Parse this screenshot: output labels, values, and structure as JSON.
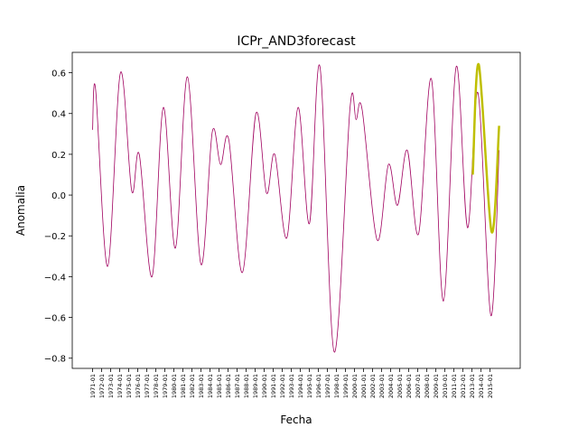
{
  "chart_data": {
    "type": "line",
    "title": "ICPr_AND3forecast",
    "x_label": "Fecha",
    "y_label": "Anomalia",
    "series": [
      {
        "name": "ICPr",
        "color": "#a0005f",
        "x": [
          "1971-01",
          "1971-05",
          "1972-09",
          "1974-02",
          "1975-05",
          "1976-03",
          "1977-08",
          "1978-11",
          "1980-03",
          "1981-07",
          "1983-01",
          "1984-04",
          "1985-03",
          "1986-02",
          "1987-08",
          "1989-02",
          "1990-04",
          "1991-03",
          "1992-07",
          "1993-10",
          "1995-01",
          "1996-03",
          "1997-10",
          "1999-07",
          "2000-03",
          "2000-11",
          "2002-07",
          "2003-10",
          "2004-10",
          "2005-11",
          "2007-02",
          "2008-07",
          "2009-11",
          "2011-04",
          "2012-07",
          "2013-09",
          "2015-02",
          "2016-01"
        ],
        "values": [
          0.32,
          0.52,
          -0.35,
          0.6,
          0.02,
          0.2,
          -0.4,
          0.43,
          -0.26,
          0.58,
          -0.34,
          0.31,
          0.15,
          0.27,
          -0.38,
          0.4,
          0.01,
          0.2,
          -0.21,
          0.43,
          -0.14,
          0.63,
          -0.77,
          0.43,
          0.37,
          0.42,
          -0.22,
          0.15,
          -0.05,
          0.22,
          -0.19,
          0.57,
          -0.52,
          0.63,
          -0.16,
          0.5,
          -0.59,
          0.22
        ]
      },
      {
        "name": "AND3forecast",
        "color": "#bfbf00",
        "x": [
          "2013-02",
          "2013-10",
          "2015-03",
          "2016-01"
        ],
        "values": [
          0.1,
          0.64,
          -0.18,
          0.34
        ]
      }
    ],
    "xlim": [
      "1968-10",
      "2018-05"
    ],
    "xticks": [
      "1971-01",
      "1972-01",
      "1973-01",
      "1974-01",
      "1975-01",
      "1976-01",
      "1977-01",
      "1978-01",
      "1979-01",
      "1980-01",
      "1981-01",
      "1982-01",
      "1983-01",
      "1984-01",
      "1985-01",
      "1986-01",
      "1987-01",
      "1988-01",
      "1989-01",
      "1990-01",
      "1991-01",
      "1992-01",
      "1993-01",
      "1994-01",
      "1995-01",
      "1996-01",
      "1997-01",
      "1998-01",
      "1999-01",
      "2000-01",
      "2001-01",
      "2002-01",
      "2003-01",
      "2004-01",
      "2005-01",
      "2006-01",
      "2007-01",
      "2008-01",
      "2009-01",
      "2010-01",
      "2011-01",
      "2012-01",
      "2013-01",
      "2014-01",
      "2015-01"
    ],
    "ylim": [
      -0.85,
      0.7
    ],
    "yticks": [
      {
        "value": -0.8,
        "label": "−0.8"
      },
      {
        "value": -0.6,
        "label": "−0.6"
      },
      {
        "value": -0.4,
        "label": "−0.4"
      },
      {
        "value": -0.2,
        "label": "−0.2"
      },
      {
        "value": 0,
        "label": "0.0"
      },
      0.2,
      0.4,
      0.6
    ]
  }
}
